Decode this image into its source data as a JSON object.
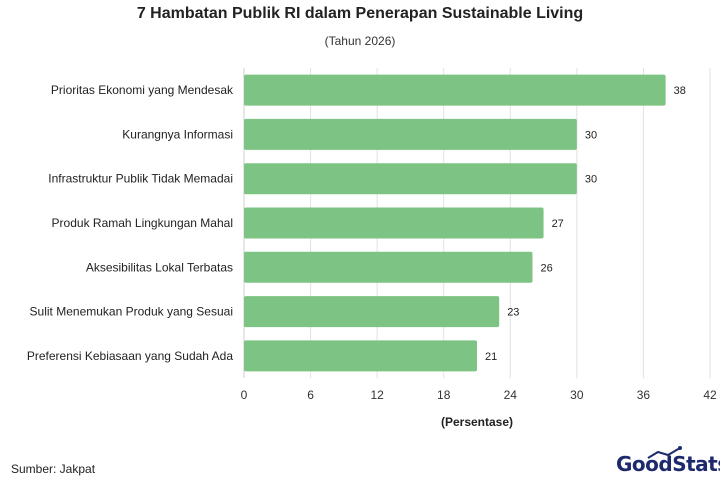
{
  "chart_data": {
    "type": "bar",
    "orientation": "horizontal",
    "title": "7 Hambatan Publik RI dalam Penerapan Sustainable Living",
    "subtitle": "(Tahun 2026)",
    "xlabel": "(Persentase)",
    "categories": [
      "Prioritas Ekonomi yang Mendesak",
      "Kurangnya Informasi",
      "Infrastruktur Publik Tidak Memadai",
      "Produk Ramah Lingkungan Mahal",
      "Aksesibilitas Lokal Terbatas",
      "Sulit Menemukan Produk yang Sesuai",
      "Preferensi Kebiasaan yang Sudah Ada"
    ],
    "values": [
      38,
      30,
      30,
      27,
      26,
      23,
      21
    ],
    "xlim": [
      0,
      42
    ],
    "xticks": [
      0,
      6,
      12,
      18,
      24,
      30,
      36,
      42
    ],
    "grid": true,
    "bar_color": "#7dc383"
  },
  "footer": {
    "source": "Sumber: Jakpat",
    "logo_text": "GoodStats"
  }
}
